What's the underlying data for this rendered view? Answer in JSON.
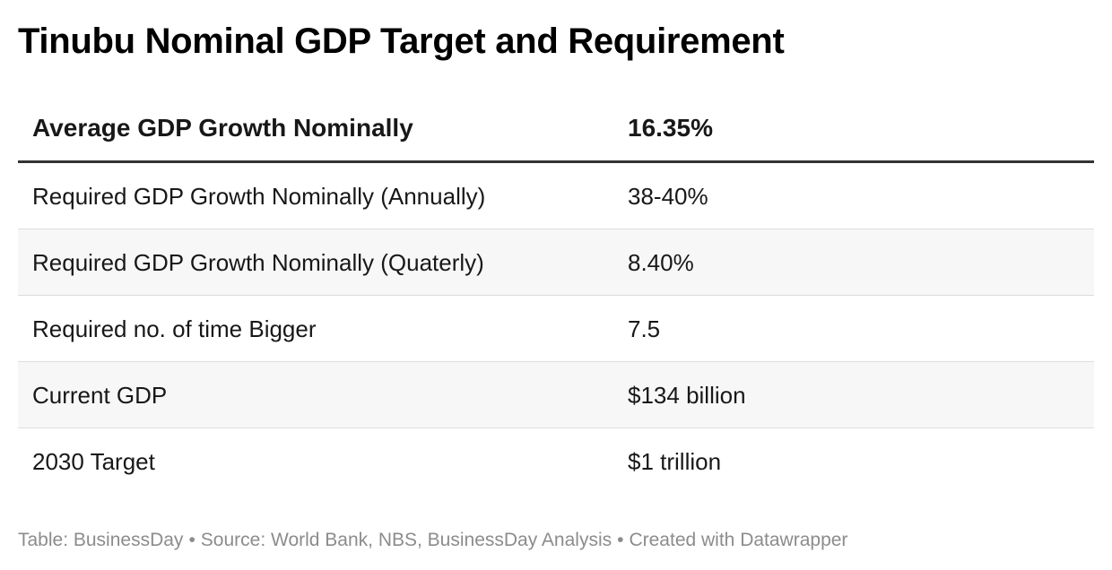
{
  "chart_data": {
    "type": "table",
    "title": "Tinubu Nominal GDP Target and Requirement",
    "columns": [
      "Average GDP Growth Nominally",
      "16.35%"
    ],
    "rows": [
      {
        "label": "Required GDP Growth Nominally (Annually)",
        "value": "38-40%"
      },
      {
        "label": "Required GDP Growth Nominally (Quaterly)",
        "value": "8.40%"
      },
      {
        "label": "Required no. of time Bigger",
        "value": "7.5"
      },
      {
        "label": "Current GDP",
        "value": "$134 billion"
      },
      {
        "label": "2030 Target",
        "value": "$1 trillion"
      }
    ]
  },
  "footer": {
    "table_credit": "Table: BusinessDay",
    "source": "Source: World Bank, NBS, BusinessDay Analysis",
    "created_with": "Created with Datawrapper",
    "separator": "•"
  },
  "colors": {
    "header_rule": "#333333",
    "row_divider": "#dddddd",
    "stripe": "#f7f7f7",
    "footer_text": "#8c8c8c"
  }
}
